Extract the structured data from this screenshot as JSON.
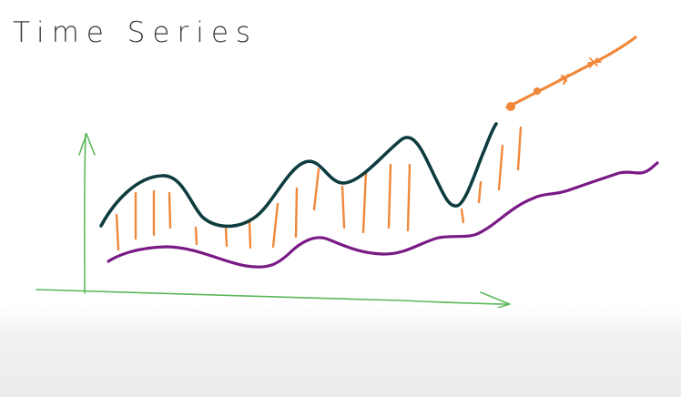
{
  "title": "Time Series",
  "colors": {
    "axis": "#5cb85c",
    "main_series": "#0e3d3f",
    "trend_series": "#7a1a86",
    "forecast": "#f0883a",
    "residual_bars": "#f0883a",
    "ink": "#3b3b3b"
  }
}
